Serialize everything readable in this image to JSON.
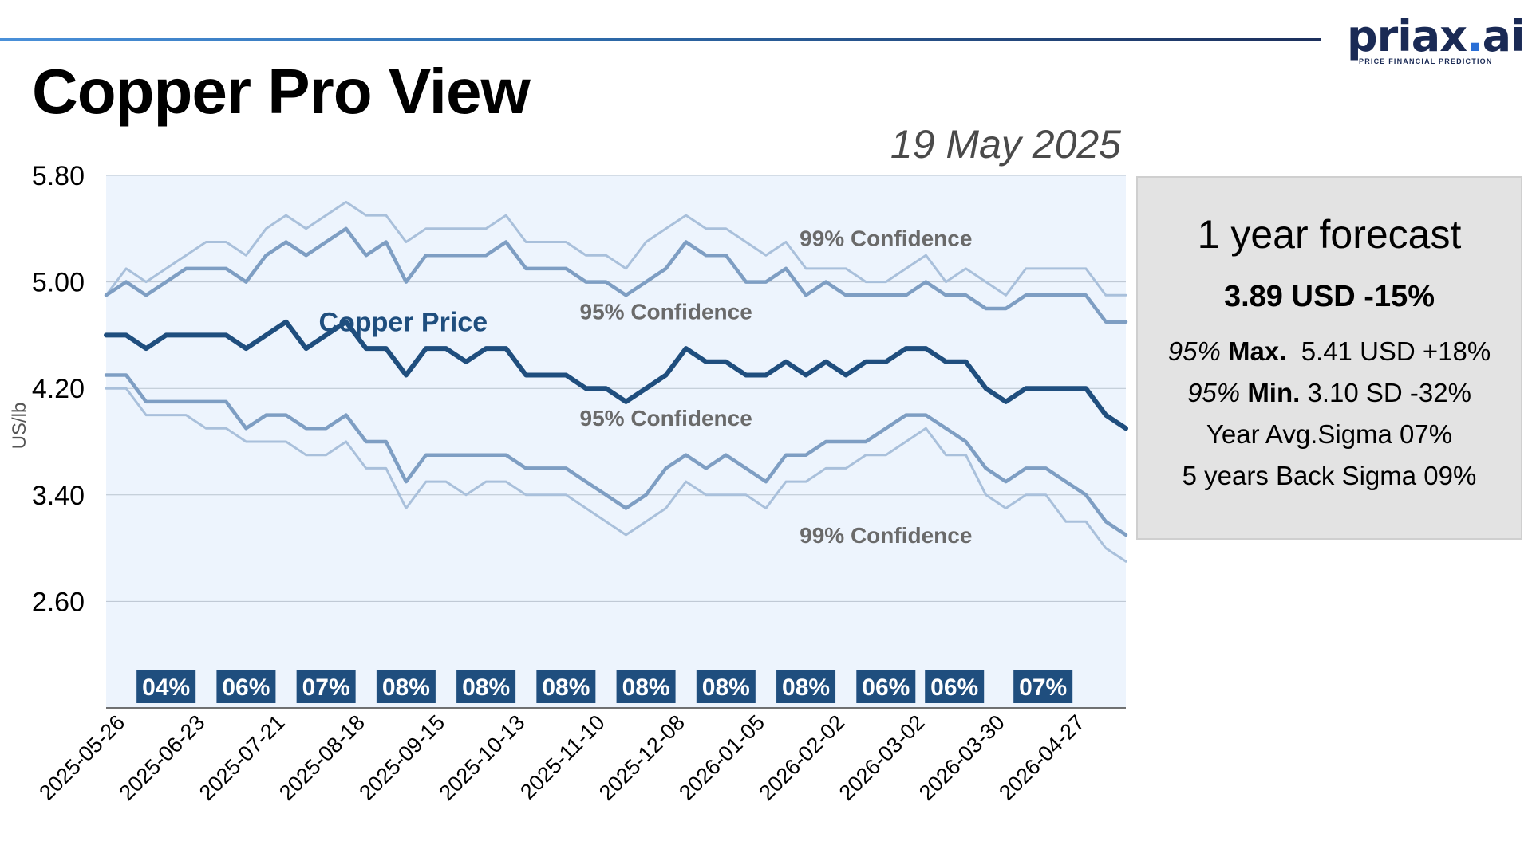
{
  "header": {
    "title": "Copper Pro View",
    "date": "19 May 2025",
    "logo_brand": "priax",
    "logo_dot": ".",
    "logo_suffix": "ai",
    "logo_tagline": "PRICE FINANCIAL PREDICTION"
  },
  "forecast": {
    "title": "1 year forecast",
    "headline": "3.89 USD -15%",
    "max_prefix": "95%",
    "max_label": "Max.",
    "max_value": "5.41 USD +18%",
    "min_prefix": "95%",
    "min_label": "Min.",
    "min_value": "3.10 SD -32%",
    "avg_sigma": "Year Avg.Sigma 07%",
    "back_sigma": "5 years Back Sigma 09%"
  },
  "colors": {
    "plot_bg": "#edf4fd",
    "price": "#1f4e7e",
    "conf95": "#7e9ec3",
    "conf99": "#a9c0db",
    "badge_bg": "#1f4e7e",
    "label_gray": "#6a6a6a"
  },
  "chart_data": {
    "type": "line",
    "ylabel": "US/lb",
    "ylim": [
      1.8,
      5.8
    ],
    "yticks": [
      "5.80",
      "5.00",
      "4.20",
      "3.40",
      "2.60"
    ],
    "xticks": [
      "2025-05-26",
      "2025-06-23",
      "2025-07-21",
      "2025-08-18",
      "2025-09-15",
      "2025-10-13",
      "2025-11-10",
      "2025-12-08",
      "2026-01-05",
      "2026-02-02",
      "2026-03-02",
      "2026-03-30",
      "2026-04-27"
    ],
    "x_start": "2025-05-19",
    "x_end": "2026-05-11",
    "x_step": "weekly",
    "series": [
      {
        "name": "Copper Price",
        "role": "price",
        "values": [
          4.6,
          4.6,
          4.5,
          4.6,
          4.6,
          4.6,
          4.6,
          4.5,
          4.6,
          4.7,
          4.5,
          4.6,
          4.7,
          4.5,
          4.5,
          4.3,
          4.5,
          4.5,
          4.4,
          4.5,
          4.5,
          4.3,
          4.3,
          4.3,
          4.2,
          4.2,
          4.1,
          4.2,
          4.3,
          4.5,
          4.4,
          4.4,
          4.3,
          4.3,
          4.4,
          4.3,
          4.4,
          4.3,
          4.4,
          4.4,
          4.5,
          4.5,
          4.4,
          4.4,
          4.2,
          4.1,
          4.2,
          4.2,
          4.2,
          4.2,
          4.0,
          3.9
        ]
      },
      {
        "name": "95% Confidence",
        "role": "upper95",
        "values": [
          4.9,
          5.0,
          4.9,
          5.0,
          5.1,
          5.1,
          5.1,
          5.0,
          5.2,
          5.3,
          5.2,
          5.3,
          5.4,
          5.2,
          5.3,
          5.0,
          5.2,
          5.2,
          5.2,
          5.2,
          5.3,
          5.1,
          5.1,
          5.1,
          5.0,
          5.0,
          4.9,
          5.0,
          5.1,
          5.3,
          5.2,
          5.2,
          5.0,
          5.0,
          5.1,
          4.9,
          5.0,
          4.9,
          4.9,
          4.9,
          4.9,
          5.0,
          4.9,
          4.9,
          4.8,
          4.8,
          4.9,
          4.9,
          4.9,
          4.9,
          4.7,
          4.7
        ]
      },
      {
        "name": "99% Confidence",
        "role": "upper99",
        "values": [
          4.9,
          5.1,
          5.0,
          5.1,
          5.2,
          5.3,
          5.3,
          5.2,
          5.4,
          5.5,
          5.4,
          5.5,
          5.6,
          5.5,
          5.5,
          5.3,
          5.4,
          5.4,
          5.4,
          5.4,
          5.5,
          5.3,
          5.3,
          5.3,
          5.2,
          5.2,
          5.1,
          5.3,
          5.4,
          5.5,
          5.4,
          5.4,
          5.3,
          5.2,
          5.3,
          5.1,
          5.1,
          5.1,
          5.0,
          5.0,
          5.1,
          5.2,
          5.0,
          5.1,
          5.0,
          4.9,
          5.1,
          5.1,
          5.1,
          5.1,
          4.9,
          4.9
        ]
      },
      {
        "name": "95% Confidence",
        "role": "lower95",
        "values": [
          4.3,
          4.3,
          4.1,
          4.1,
          4.1,
          4.1,
          4.1,
          3.9,
          4.0,
          4.0,
          3.9,
          3.9,
          4.0,
          3.8,
          3.8,
          3.5,
          3.7,
          3.7,
          3.7,
          3.7,
          3.7,
          3.6,
          3.6,
          3.6,
          3.5,
          3.4,
          3.3,
          3.4,
          3.6,
          3.7,
          3.6,
          3.7,
          3.6,
          3.5,
          3.7,
          3.7,
          3.8,
          3.8,
          3.8,
          3.9,
          4.0,
          4.0,
          3.9,
          3.8,
          3.6,
          3.5,
          3.6,
          3.6,
          3.5,
          3.4,
          3.2,
          3.1
        ]
      },
      {
        "name": "99% Confidence",
        "role": "lower99",
        "values": [
          4.2,
          4.2,
          4.0,
          4.0,
          4.0,
          3.9,
          3.9,
          3.8,
          3.8,
          3.8,
          3.7,
          3.7,
          3.8,
          3.6,
          3.6,
          3.3,
          3.5,
          3.5,
          3.4,
          3.5,
          3.5,
          3.4,
          3.4,
          3.4,
          3.3,
          3.2,
          3.1,
          3.2,
          3.3,
          3.5,
          3.4,
          3.4,
          3.4,
          3.3,
          3.5,
          3.5,
          3.6,
          3.6,
          3.7,
          3.7,
          3.8,
          3.9,
          3.7,
          3.7,
          3.4,
          3.3,
          3.4,
          3.4,
          3.2,
          3.2,
          3.0,
          2.9
        ]
      }
    ],
    "annotations": [
      {
        "text": "Copper Price",
        "role": "price",
        "x": "2025-08-31",
        "y": 4.63
      },
      {
        "text": "95% Confidence",
        "role": "upper95",
        "x": "2025-12-01",
        "y": 4.72
      },
      {
        "text": "99% Confidence",
        "role": "upper99",
        "x": "2026-02-16",
        "y": 5.27
      },
      {
        "text": "95% Confidence",
        "role": "lower95",
        "x": "2025-12-01",
        "y": 3.92
      },
      {
        "text": "99% Confidence",
        "role": "lower99",
        "x": "2026-02-16",
        "y": 3.04
      }
    ],
    "sigma_badges": [
      {
        "text": "04%",
        "date": "2025-06-09"
      },
      {
        "text": "06%",
        "date": "2025-07-07"
      },
      {
        "text": "07%",
        "date": "2025-08-04"
      },
      {
        "text": "08%",
        "date": "2025-09-01"
      },
      {
        "text": "08%",
        "date": "2025-09-29"
      },
      {
        "text": "08%",
        "date": "2025-10-27"
      },
      {
        "text": "08%",
        "date": "2025-11-24"
      },
      {
        "text": "08%",
        "date": "2025-12-22"
      },
      {
        "text": "08%",
        "date": "2026-01-19"
      },
      {
        "text": "06%",
        "date": "2026-02-16"
      },
      {
        "text": "06%",
        "date": "2026-03-12"
      },
      {
        "text": "07%",
        "date": "2026-04-12"
      }
    ],
    "grid": true
  }
}
